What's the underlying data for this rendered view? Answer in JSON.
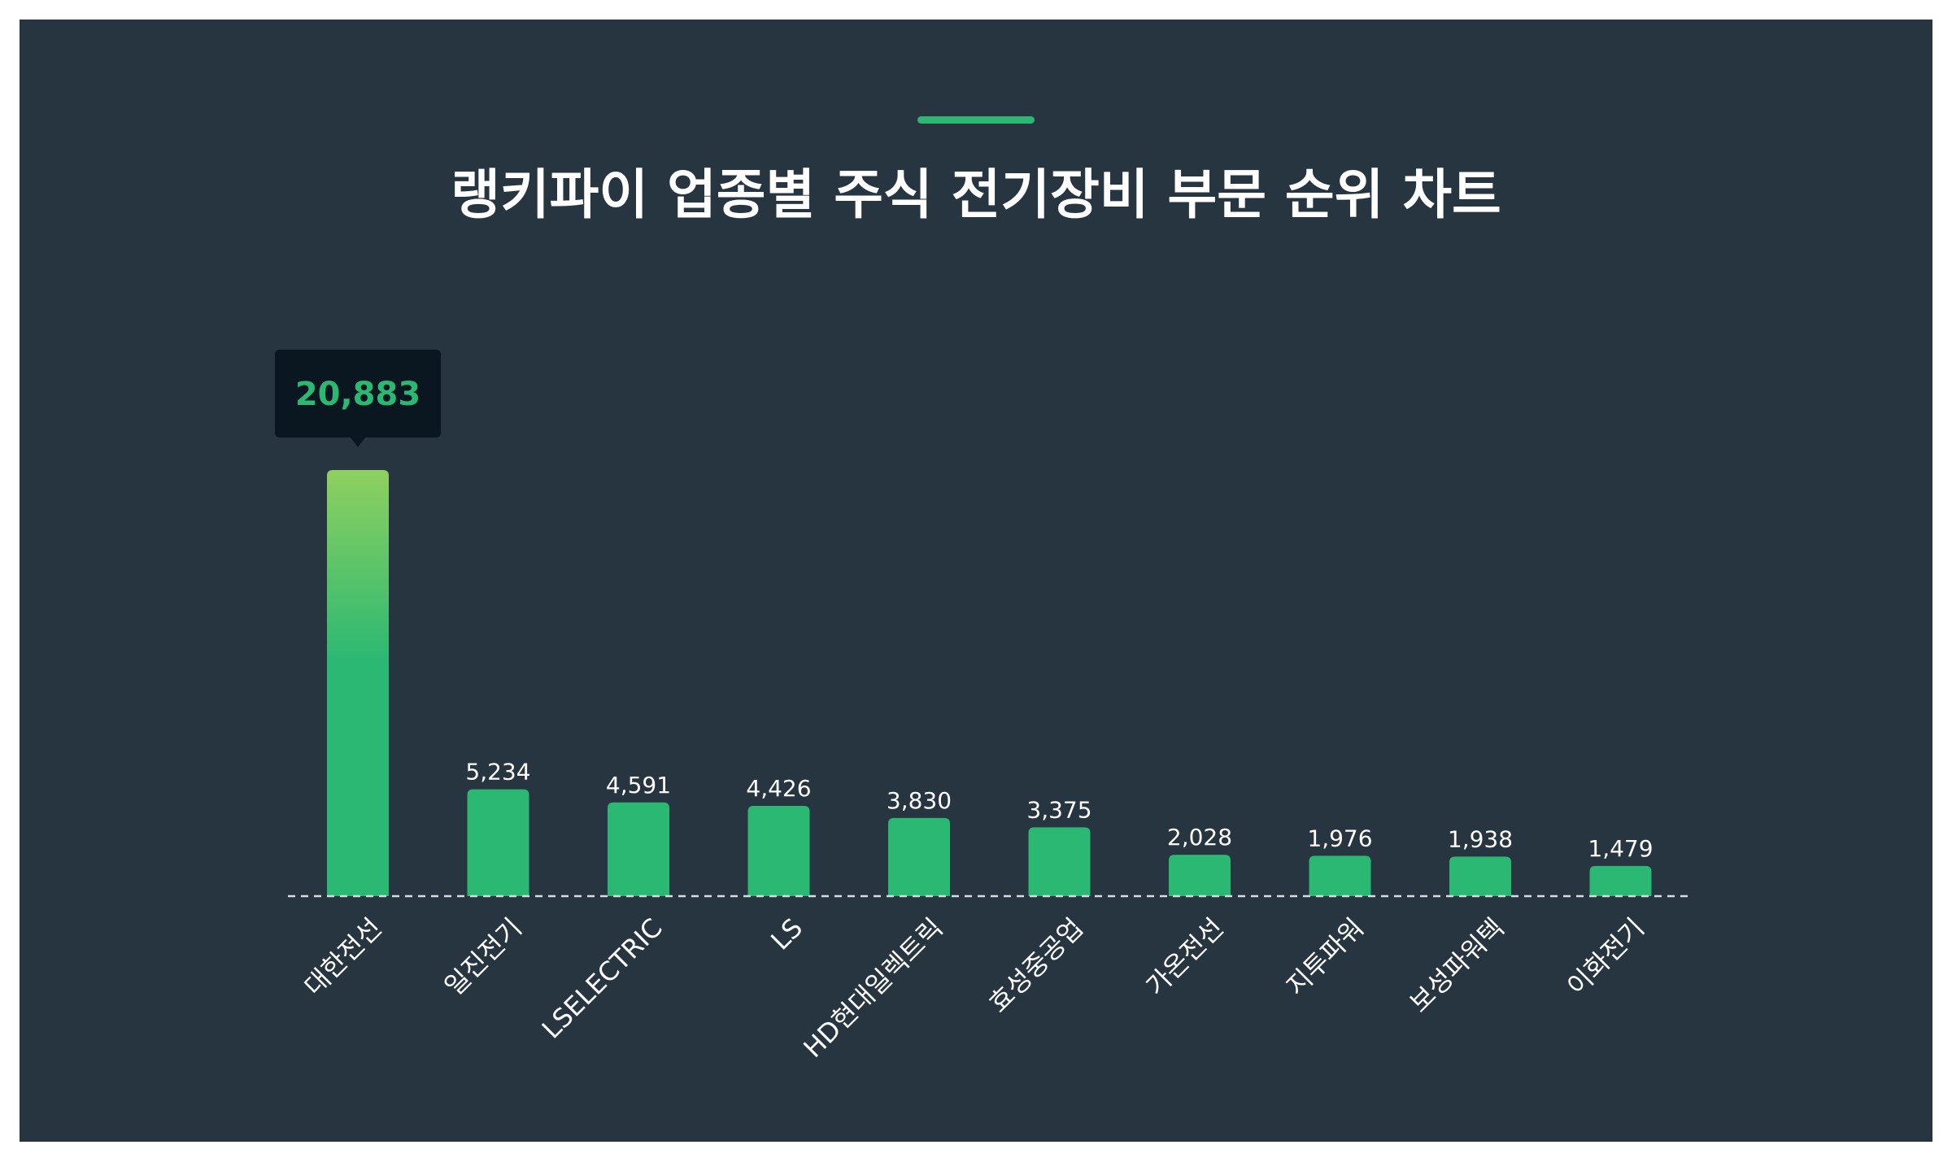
{
  "chart_data": {
    "type": "bar",
    "title": "랭키파이 업종별 주식 전기장비 부문 순위 차트",
    "categories": [
      "대한전선",
      "일진전기",
      "LSELECTRIC",
      "LS",
      "HD현대일렉트릭",
      "효성중공업",
      "가온전선",
      "지투파워",
      "보성파워텍",
      "이화전기"
    ],
    "values": [
      20883,
      5234,
      4591,
      4426,
      3830,
      3375,
      2028,
      1976,
      1938,
      1479
    ],
    "value_labels": [
      "20,883",
      "5,234",
      "4,591",
      "4,426",
      "3,830",
      "3,375",
      "2,028",
      "1,976",
      "1,938",
      "1,479"
    ],
    "highlight_index": 0,
    "ylim": [
      0,
      20883
    ],
    "grid": false,
    "colors": {
      "background": "#263540",
      "bar": "#2bb873",
      "bar_highlight_top": "#8fd05f",
      "accent": "#2bb873",
      "tooltip_bg": "#0a1620",
      "baseline": "#d8dde2"
    }
  }
}
